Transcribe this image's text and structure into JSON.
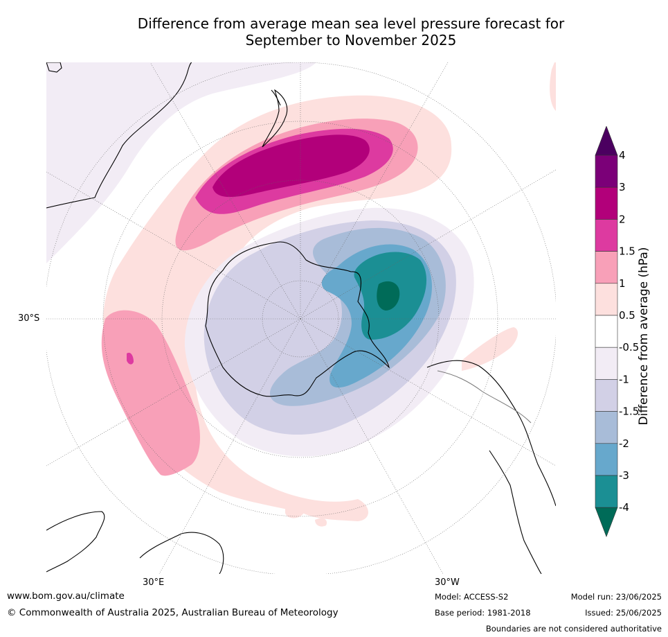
{
  "title_line1": "Difference from average mean sea level pressure forecast for",
  "title_line2": "September to November 2025",
  "map": {
    "lat_label": "30°S",
    "lon_labels": [
      "30°E",
      "30°W"
    ],
    "colors": {
      "land_line": "#000000",
      "grid": "#666666",
      "pos_05_1": "#fde0de",
      "pos_1_15": "#f8a0b8",
      "pos_15_2": "#dd3aa0",
      "pos_2_3": "#b2007a",
      "neg_05_1": "#f2ecf5",
      "neg_1_15": "#d2d0e6",
      "neg_15_2": "#a8bcd8",
      "neg_2_3": "#67a8cc",
      "neg_3_4": "#1b8f94",
      "neg_4": "#006b58"
    }
  },
  "colorbar": {
    "title": "Difference from average (hPa)",
    "ticks": [
      "4",
      "3",
      "2",
      "1.5",
      "1",
      "0.5",
      "-0.5",
      "-1",
      "-1.5",
      "-2",
      "-3",
      "-4"
    ],
    "colors": [
      "#4b0060",
      "#7b0078",
      "#b2007a",
      "#dd3aa0",
      "#f8a0b8",
      "#fde0de",
      "#ffffff",
      "#f2ecf5",
      "#d2d0e6",
      "#a8bcd8",
      "#67a8cc",
      "#1b8f94",
      "#006b58"
    ]
  },
  "footer": {
    "website": "www.bom.gov.au/climate",
    "copyright": "© Commonwealth of Australia 2025, Australian Bureau of Meteorology",
    "model": "Model: ACCESS-S2",
    "base_period": "Base period: 1981-2018",
    "model_run": "Model run: 23/06/2025",
    "issued": "Issued: 25/06/2025",
    "disclaimer": "Boundaries are not considered authoritative"
  }
}
